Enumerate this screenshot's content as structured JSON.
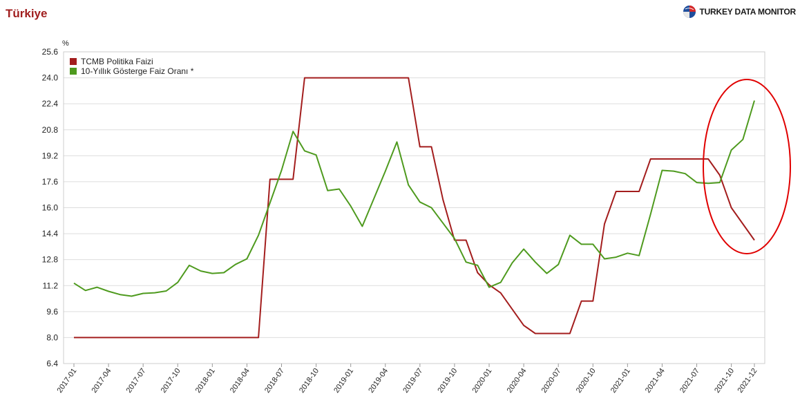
{
  "header": {
    "title": "Türkiye",
    "brand": "TURKEY DATA MONITOR",
    "brand_icon": "globe-logo-icon"
  },
  "colors": {
    "title": "#a01e1e",
    "series_policy": "#a31d1d",
    "series_bond": "#4e9a1e",
    "annotation": "#e00000",
    "grid": "#dddddd"
  },
  "chart_data": {
    "type": "line",
    "title": "",
    "ylabel": "%",
    "xlabel": "",
    "ylim": [
      6.4,
      25.6
    ],
    "yticks": [
      6.4,
      8.0,
      9.6,
      11.2,
      12.8,
      14.4,
      16.0,
      17.6,
      19.2,
      20.8,
      22.4,
      24.0,
      25.6
    ],
    "ytick_labels": [
      "6.4",
      "8.0",
      "9.6",
      "11.2",
      "12.8",
      "14.4",
      "16.0",
      "17.6",
      "19.2",
      "20.8",
      "22.4",
      "24.0",
      "25.6"
    ],
    "grid": true,
    "legend_position": "top-left",
    "x": [
      "2017-01",
      "2017-02",
      "2017-03",
      "2017-04",
      "2017-05",
      "2017-06",
      "2017-07",
      "2017-08",
      "2017-09",
      "2017-10",
      "2017-11",
      "2017-12",
      "2018-01",
      "2018-02",
      "2018-03",
      "2018-04",
      "2018-05",
      "2018-06",
      "2018-07",
      "2018-08",
      "2018-09",
      "2018-10",
      "2018-11",
      "2018-12",
      "2019-01",
      "2019-02",
      "2019-03",
      "2019-04",
      "2019-05",
      "2019-06",
      "2019-07",
      "2019-08",
      "2019-09",
      "2019-10",
      "2019-11",
      "2019-12",
      "2020-01",
      "2020-02",
      "2020-03",
      "2020-04",
      "2020-05",
      "2020-06",
      "2020-07",
      "2020-08",
      "2020-09",
      "2020-10",
      "2020-11",
      "2020-12",
      "2021-01",
      "2021-02",
      "2021-03",
      "2021-04",
      "2021-05",
      "2021-06",
      "2021-07",
      "2021-08",
      "2021-09",
      "2021-10",
      "2021-11",
      "2021-12"
    ],
    "xtick_labels": [
      "2017-01",
      "2017-04",
      "2017-07",
      "2017-10",
      "2018-01",
      "2018-04",
      "2018-07",
      "2018-10",
      "2019-01",
      "2019-04",
      "2019-07",
      "2019-10",
      "2020-01",
      "2020-04",
      "2020-07",
      "2020-10",
      "2021-01",
      "2021-04",
      "2021-07",
      "2021-10",
      "2021-12"
    ],
    "series": [
      {
        "name": "TCMB Politika Faizi",
        "color": "#a31d1d",
        "values": [
          8.0,
          null,
          null,
          null,
          null,
          null,
          null,
          null,
          null,
          null,
          null,
          null,
          null,
          null,
          null,
          null,
          8.0,
          17.75,
          17.75,
          17.75,
          24.0,
          24.0,
          24.0,
          24.0,
          24.0,
          24.0,
          24.0,
          24.0,
          24.0,
          24.0,
          19.75,
          19.75,
          16.5,
          14.0,
          14.0,
          12.0,
          11.25,
          10.75,
          9.75,
          8.75,
          8.25,
          8.25,
          8.25,
          8.25,
          10.25,
          10.25,
          15.0,
          17.0,
          17.0,
          17.0,
          19.0,
          19.0,
          19.0,
          19.0,
          19.0,
          19.0,
          18.0,
          16.0,
          15.0,
          14.0
        ]
      },
      {
        "name": "10-Yıllık Gösterge Faiz Oranı *",
        "color": "#4e9a1e",
        "values": [
          11.35,
          10.9,
          11.1,
          10.85,
          10.65,
          10.55,
          10.72,
          10.76,
          10.87,
          11.4,
          12.45,
          12.1,
          11.95,
          12.0,
          12.5,
          12.85,
          14.3,
          16.3,
          18.3,
          20.7,
          19.5,
          19.25,
          17.05,
          17.15,
          16.1,
          14.85,
          16.55,
          18.25,
          20.05,
          17.4,
          16.35,
          16.0,
          15.05,
          14.1,
          12.65,
          12.45,
          11.1,
          11.4,
          12.6,
          13.45,
          12.65,
          11.95,
          12.5,
          14.3,
          13.75,
          13.75,
          12.85,
          12.95,
          13.2,
          13.05,
          15.6,
          18.3,
          18.25,
          18.1,
          17.55,
          17.5,
          17.55,
          19.55,
          20.2,
          22.6
        ]
      }
    ]
  }
}
